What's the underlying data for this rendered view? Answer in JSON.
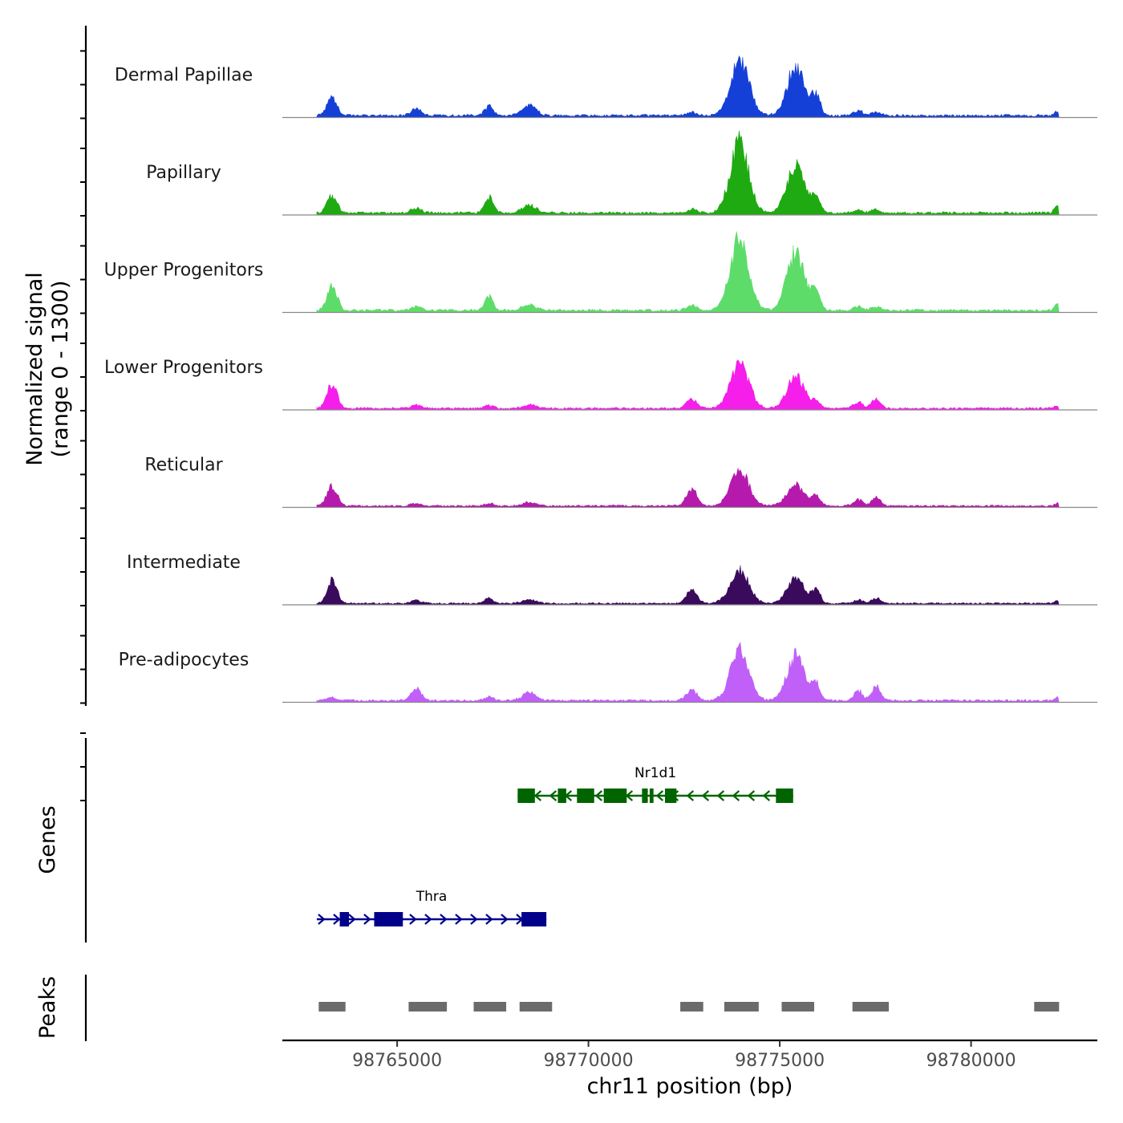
{
  "chart_data": {
    "type": "area",
    "region": {
      "chromosome": "chr11",
      "start": 98762000,
      "end": 98783300
    },
    "ylabel_line1": "Normalized signal",
    "ylabel_line2": "(range 0 - 1300)",
    "ylim": [
      0,
      1300
    ],
    "xlabel": "chr11 position (bp)",
    "x_ticks": [
      98765000,
      98770000,
      98775000,
      98780000
    ],
    "x_tick_labels": [
      "98765000",
      "98770000",
      "98775000",
      "98780000"
    ],
    "genes_label": "Genes",
    "peaks_label": "Peaks",
    "peak_features": [
      {
        "name": "Dermal Papillae",
        "color": "#1540D8",
        "scale": 0.98
      },
      {
        "name": "Papillary",
        "color": "#1FAA12",
        "scale": 1.0
      },
      {
        "name": "Upper Progenitors",
        "color": "#5EDC6A",
        "scale": 1.0
      },
      {
        "name": "Lower Progenitors",
        "color": "#F51EEA",
        "scale": 0.8
      },
      {
        "name": "Reticular",
        "color": "#B51AAD",
        "scale": 0.72
      },
      {
        "name": "Intermediate",
        "color": "#3A0A5C",
        "scale": 0.68
      },
      {
        "name": "Pre-adipocytes",
        "color": "#C060F8",
        "scale": 0.85
      }
    ],
    "tracks_shape": {
      "baseline_noise": 0.03,
      "peaks": [
        {
          "pos": 98763300,
          "width": 130,
          "h": [
            0.22,
            0.22,
            0.3,
            0.38,
            0.35,
            0.42,
            0.05
          ]
        },
        {
          "pos": 98765500,
          "width": 130,
          "h": [
            0.09,
            0.06,
            0.05,
            0.05,
            0.05,
            0.06,
            0.18
          ]
        },
        {
          "pos": 98767400,
          "width": 110,
          "h": [
            0.12,
            0.21,
            0.18,
            0.05,
            0.05,
            0.1,
            0.06
          ]
        },
        {
          "pos": 98768450,
          "width": 180,
          "h": [
            0.14,
            0.1,
            0.07,
            0.05,
            0.06,
            0.07,
            0.12
          ]
        },
        {
          "pos": 98772700,
          "width": 140,
          "h": [
            0.04,
            0.05,
            0.06,
            0.15,
            0.3,
            0.25,
            0.15
          ]
        },
        {
          "pos": 98773950,
          "width": 240,
          "h": [
            0.72,
            0.88,
            0.9,
            0.72,
            0.62,
            0.62,
            0.74
          ]
        },
        {
          "pos": 98775420,
          "width": 230,
          "h": [
            0.62,
            0.62,
            0.72,
            0.48,
            0.35,
            0.45,
            0.68
          ]
        },
        {
          "pos": 98775950,
          "width": 110,
          "h": [
            0.25,
            0.2,
            0.25,
            0.1,
            0.18,
            0.24,
            0.25
          ]
        },
        {
          "pos": 98777050,
          "width": 120,
          "h": [
            0.06,
            0.04,
            0.05,
            0.1,
            0.12,
            0.07,
            0.15
          ]
        },
        {
          "pos": 98777520,
          "width": 110,
          "h": [
            0.05,
            0.04,
            0.05,
            0.16,
            0.15,
            0.1,
            0.22
          ]
        },
        {
          "pos": 98782250,
          "width": 70,
          "h": [
            0.06,
            0.09,
            0.08,
            0.04,
            0.05,
            0.04,
            0.04
          ]
        }
      ]
    },
    "genes": [
      {
        "name": "Nr1d1",
        "strand": "-",
        "color": "#006400",
        "start": 98768150,
        "end": 98775350,
        "exons": [
          [
            98768150,
            98768600
          ],
          [
            98769200,
            98769420
          ],
          [
            98769700,
            98770150
          ],
          [
            98770400,
            98771000
          ],
          [
            98771400,
            98771550
          ],
          [
            98771600,
            98771700
          ],
          [
            98772000,
            98772300
          ],
          [
            98774900,
            98775350
          ]
        ]
      },
      {
        "name": "Thra",
        "strand": "+",
        "color": "#00008B",
        "start": 98762900,
        "end": 98768900,
        "exons": [
          [
            98763500,
            98763740
          ],
          [
            98764400,
            98765150
          ],
          [
            98768250,
            98768900
          ]
        ]
      }
    ],
    "peaks": [
      [
        98762950,
        98763650
      ],
      [
        98765300,
        98766300
      ],
      [
        98767000,
        98767850
      ],
      [
        98768200,
        98769050
      ],
      [
        98772400,
        98773000
      ],
      [
        98773550,
        98774450
      ],
      [
        98775050,
        98775900
      ],
      [
        98776900,
        98777850
      ],
      [
        98781650,
        98782300
      ]
    ]
  }
}
